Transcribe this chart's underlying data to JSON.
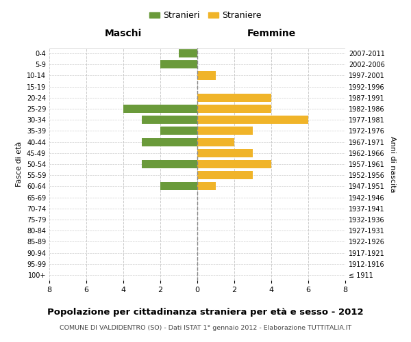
{
  "age_groups": [
    "100+",
    "95-99",
    "90-94",
    "85-89",
    "80-84",
    "75-79",
    "70-74",
    "65-69",
    "60-64",
    "55-59",
    "50-54",
    "45-49",
    "40-44",
    "35-39",
    "30-34",
    "25-29",
    "20-24",
    "15-19",
    "10-14",
    "5-9",
    "0-4"
  ],
  "birth_years": [
    "≤ 1911",
    "1912-1916",
    "1917-1921",
    "1922-1926",
    "1927-1931",
    "1932-1936",
    "1937-1941",
    "1942-1946",
    "1947-1951",
    "1952-1956",
    "1957-1961",
    "1962-1966",
    "1967-1971",
    "1972-1976",
    "1977-1981",
    "1982-1986",
    "1987-1991",
    "1992-1996",
    "1997-2001",
    "2002-2006",
    "2007-2011"
  ],
  "maschi": [
    0,
    0,
    0,
    0,
    0,
    0,
    0,
    0,
    2,
    0,
    3,
    0,
    3,
    2,
    3,
    4,
    0,
    0,
    0,
    2,
    1
  ],
  "femmine": [
    0,
    0,
    0,
    0,
    0,
    0,
    0,
    0,
    1,
    3,
    4,
    3,
    2,
    3,
    6,
    4,
    4,
    0,
    1,
    0,
    0
  ],
  "color_maschi": "#6a9a3a",
  "color_femmine": "#f0b429",
  "title": "Popolazione per cittadinanza straniera per età e sesso - 2012",
  "subtitle": "COMUNE DI VALDIDENTRO (SO) - Dati ISTAT 1° gennaio 2012 - Elaborazione TUTTITALIA.IT",
  "xlabel_left": "Maschi",
  "xlabel_right": "Femmine",
  "ylabel": "Fasce di età",
  "ylabel_right": "Anni di nascita",
  "legend_maschi": "Stranieri",
  "legend_femmine": "Straniere",
  "xlim": 8,
  "background_color": "#ffffff",
  "grid_color": "#cccccc"
}
